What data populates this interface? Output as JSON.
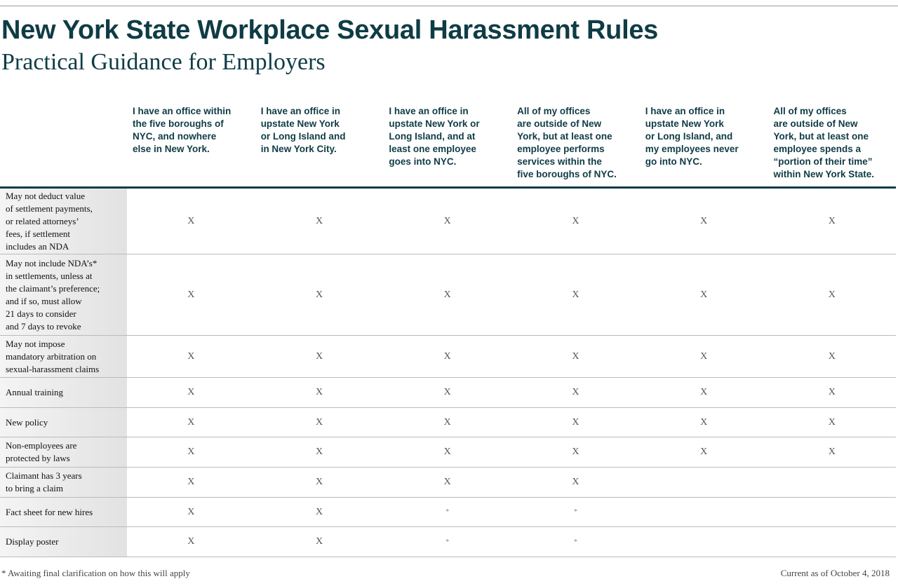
{
  "header": {
    "title": "New York State Workplace Sexual Harassment Rules",
    "subtitle": "Practical Guidance for Employers"
  },
  "table": {
    "columns": [
      "I have an office within\nthe five boroughs of\nNYC, and nowhere\nelse in New York.",
      "I have an office in\nupstate New York\nor Long Island and\nin New York City.",
      "I have an office in\nupstate New York or\nLong Island, and at\nleast one employee\ngoes into NYC.",
      "All of my offices\nare outside of New\nYork, but at least one\nemployee performs\nservices within the\nfive boroughs of NYC.",
      "I have an office in\nupstate New York\nor Long Island, and\nmy employees never\ngo into NYC.",
      "All of my offices\nare outside of New\nYork, but at least one\nemployee spends a\n“portion of their time”\nwithin New York State."
    ],
    "rows": [
      {
        "label": "May not deduct value\nof settlement payments,\nor related attorneys’\nfees, if settlement\nincludes an NDA",
        "cells": [
          "X",
          "X",
          "X",
          "X",
          "X",
          "X"
        ]
      },
      {
        "label": "May not include NDA’s*\nin settlements, unless at\nthe claimant’s preference;\nand if so, must allow\n21 days to consider\nand 7 days to revoke",
        "cells": [
          "X",
          "X",
          "X",
          "X",
          "X",
          "X"
        ]
      },
      {
        "label": "May not impose\nmandatory arbitration on\nsexual-harassment claims",
        "cells": [
          "X",
          "X",
          "X",
          "X",
          "X",
          "X"
        ]
      },
      {
        "label": "Annual training",
        "cells": [
          "X",
          "X",
          "X",
          "X",
          "X",
          "X"
        ]
      },
      {
        "label": "New policy",
        "cells": [
          "X",
          "X",
          "X",
          "X",
          "X",
          "X"
        ]
      },
      {
        "label": "Non-employees are\nprotected by laws",
        "cells": [
          "X",
          "X",
          "X",
          "X",
          "X",
          "X"
        ]
      },
      {
        "label": "Claimant has 3 years\nto bring a claim",
        "cells": [
          "X",
          "X",
          "X",
          "X",
          null,
          null
        ]
      },
      {
        "label": "Fact sheet for new hires",
        "cells": [
          "X",
          "X",
          "*",
          "*",
          null,
          null
        ]
      },
      {
        "label": "Display poster",
        "cells": [
          "X",
          "X",
          "*",
          "*",
          null,
          null
        ]
      }
    ]
  },
  "footer": {
    "note": "* Awaiting final clarification on how this will apply",
    "date": "Current as of October 4, 2018"
  }
}
